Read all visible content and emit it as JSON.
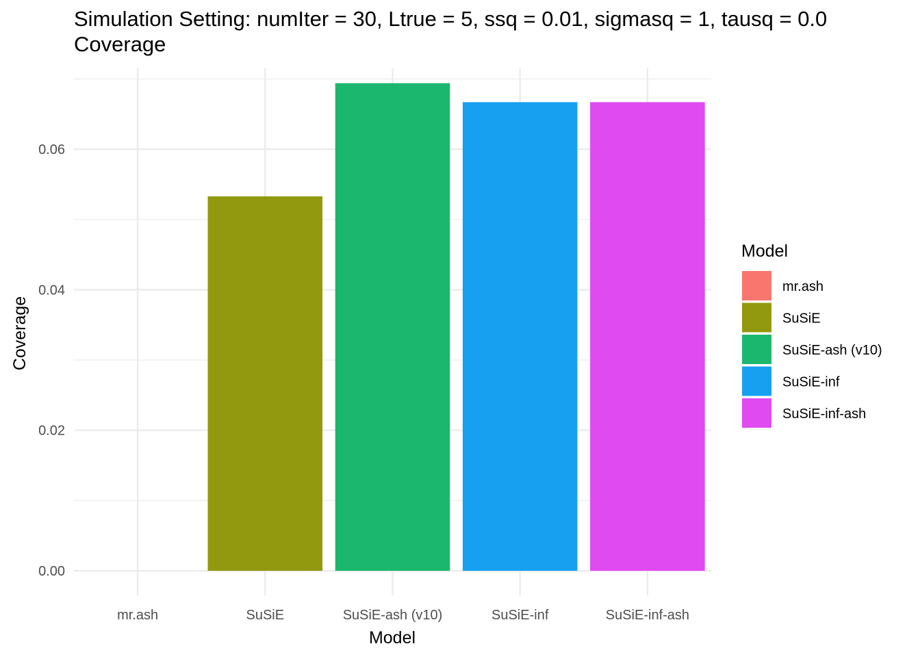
{
  "title_line1": "Simulation Setting: numIter = 30, Ltrue = 5, ssq = 0.01, sigmasq = 1, tausq = 0.0",
  "title_line2": "Coverage",
  "chart_data": {
    "type": "bar",
    "xlabel": "Model",
    "ylabel": "Coverage",
    "ylim": [
      -0.0035,
      0.0715
    ],
    "yticks": [
      0.0,
      0.02,
      0.04,
      0.06
    ],
    "ytick_labels": [
      "0.00",
      "0.02",
      "0.04",
      "0.06"
    ],
    "categories": [
      "mr.ash",
      "SuSiE",
      "SuSiE-ash (v10)",
      "SuSiE-inf",
      "SuSiE-inf-ash"
    ],
    "values": [
      0.0,
      0.0533,
      0.0694,
      0.0667,
      0.0667
    ],
    "colors": [
      "#F8766D",
      "#93990E",
      "#1BB76E",
      "#17A0F0",
      "#DF4BF1"
    ],
    "grid": true,
    "legend": {
      "title": "Model",
      "position": "right",
      "entries": [
        "mr.ash",
        "SuSiE",
        "SuSiE-ash (v10)",
        "SuSiE-inf",
        "SuSiE-inf-ash"
      ]
    }
  }
}
